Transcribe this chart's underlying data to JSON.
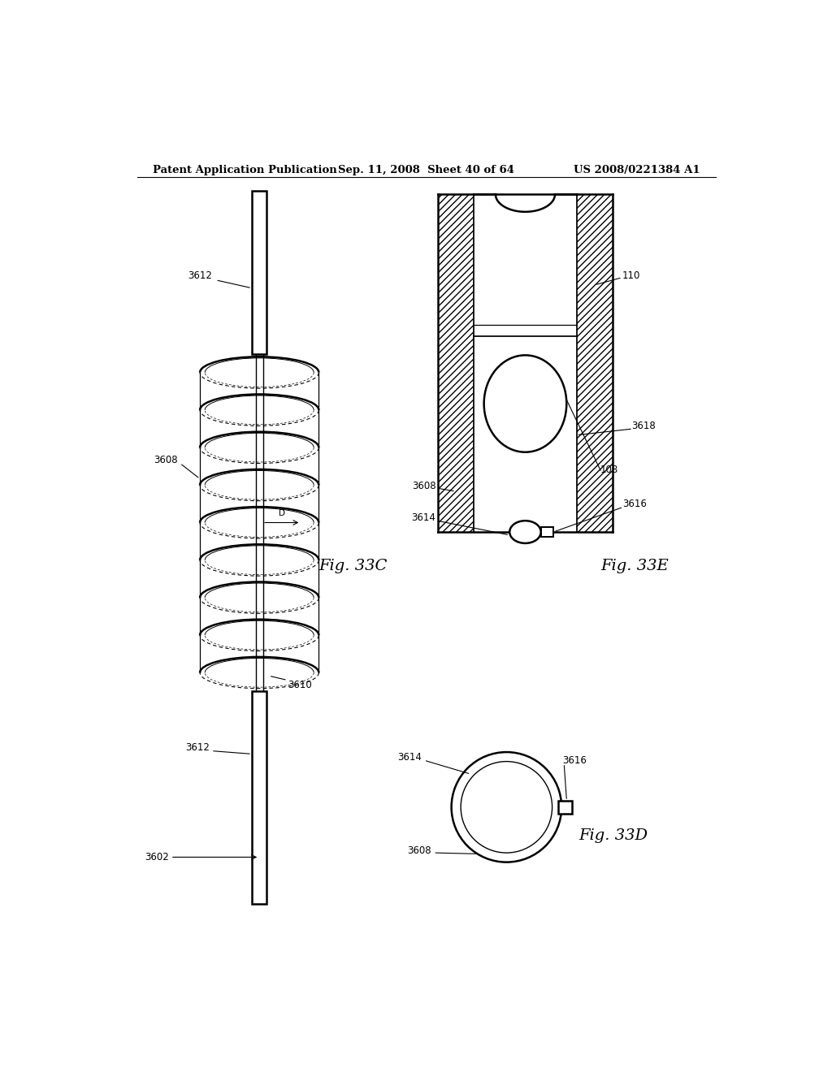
{
  "title_left": "Patent Application Publication",
  "title_mid": "Sep. 11, 2008  Sheet 40 of 64",
  "title_right": "US 2008/0221384 A1",
  "fig33c_label": "Fig. 33C",
  "fig33d_label": "Fig. 33D",
  "fig33e_label": "Fig. 33E",
  "bg_color": "#ffffff",
  "line_color": "#000000"
}
